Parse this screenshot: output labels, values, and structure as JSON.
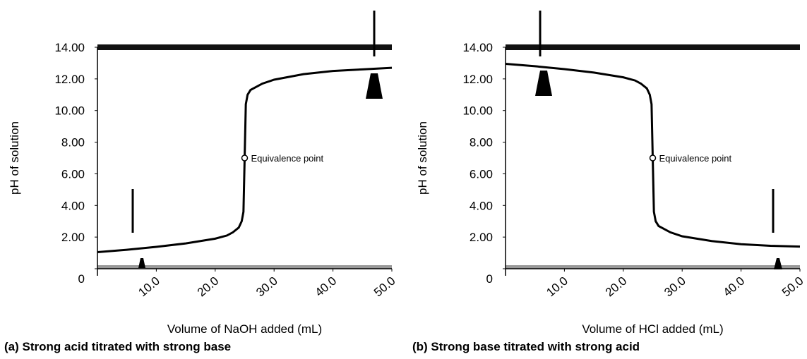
{
  "chart_data": [
    {
      "type": "line",
      "title": "(a) Strong acid titrated with strong base",
      "xlabel": "Volume of NaOH added (mL)",
      "ylabel": "pH of solution",
      "x": [
        0,
        5,
        10,
        15,
        20,
        22,
        23,
        24,
        24.5,
        24.8,
        25,
        25.2,
        25.5,
        26,
        28,
        30,
        35,
        40,
        45,
        50
      ],
      "values": [
        1.05,
        1.2,
        1.38,
        1.6,
        1.9,
        2.1,
        2.3,
        2.6,
        3.0,
        3.6,
        7.0,
        10.4,
        11.0,
        11.3,
        11.7,
        11.95,
        12.3,
        12.5,
        12.6,
        12.7
      ],
      "color": "#000000",
      "annotation": {
        "text": "Equivalence point",
        "x": 25,
        "y": 7
      },
      "xlim": [
        0,
        50
      ],
      "xticks": [
        {
          "value": 10,
          "label": "10.0"
        },
        {
          "value": 20,
          "label": "20.0"
        },
        {
          "value": 30,
          "label": "30.0"
        },
        {
          "value": 40,
          "label": "40.0"
        },
        {
          "value": 50,
          "label": "50.0"
        }
      ],
      "ylim": [
        0,
        14
      ],
      "yticks": [
        0,
        {
          "value": 2,
          "label": "2.00"
        },
        {
          "value": 4,
          "label": "4.00"
        },
        {
          "value": 6,
          "label": "6.00"
        },
        {
          "value": 8,
          "label": "8.00"
        },
        {
          "value": 10,
          "label": "10.00"
        },
        {
          "value": 12,
          "label": "12.00"
        },
        {
          "value": 14,
          "label": "14.00"
        }
      ],
      "grid": false
    },
    {
      "type": "line",
      "title": "(b) Strong base titrated with strong acid",
      "xlabel": "Volume of HCl added (mL)",
      "ylabel": "pH of solution",
      "x": [
        0,
        5,
        10,
        15,
        20,
        22,
        23,
        24,
        24.5,
        24.8,
        25,
        25.2,
        25.5,
        26,
        28,
        30,
        35,
        40,
        45,
        50
      ],
      "values": [
        12.95,
        12.8,
        12.62,
        12.4,
        12.1,
        11.9,
        11.7,
        11.4,
        11.0,
        10.4,
        7.0,
        3.6,
        3.0,
        2.7,
        2.3,
        2.05,
        1.75,
        1.55,
        1.45,
        1.4
      ],
      "color": "#000000",
      "annotation": {
        "text": "Equivalence point",
        "x": 25,
        "y": 7
      },
      "xlim": [
        0,
        50
      ],
      "xticks": [
        {
          "value": 10,
          "label": "10.0"
        },
        {
          "value": 20,
          "label": "20.0"
        },
        {
          "value": 30,
          "label": "30.0"
        },
        {
          "value": 40,
          "label": "40.0"
        },
        {
          "value": 50,
          "label": "50.0"
        }
      ],
      "ylim": [
        0,
        14
      ],
      "yticks": [
        0,
        {
          "value": 2,
          "label": "2.00"
        },
        {
          "value": 4,
          "label": "4.00"
        },
        {
          "value": 6,
          "label": "6.00"
        },
        {
          "value": 8,
          "label": "8.00"
        },
        {
          "value": 10,
          "label": "10.00"
        },
        {
          "value": 12,
          "label": "12.00"
        },
        {
          "value": 14,
          "label": "14.00"
        }
      ],
      "grid": false
    }
  ]
}
